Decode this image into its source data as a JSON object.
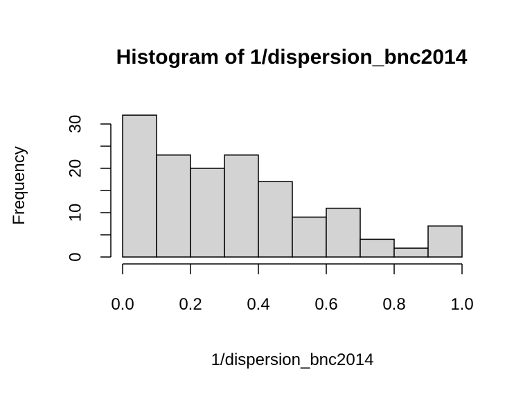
{
  "chart_data": {
    "type": "bar",
    "subtype": "histogram",
    "title": "Histogram of 1/dispersion_bnc2014",
    "xlabel": "1/dispersion_bnc2014",
    "ylabel": "Frequency",
    "bins": [
      {
        "start": 0.0,
        "end": 0.1,
        "count": 32
      },
      {
        "start": 0.1,
        "end": 0.2,
        "count": 23
      },
      {
        "start": 0.2,
        "end": 0.3,
        "count": 20
      },
      {
        "start": 0.3,
        "end": 0.4,
        "count": 23
      },
      {
        "start": 0.4,
        "end": 0.5,
        "count": 17
      },
      {
        "start": 0.5,
        "end": 0.6,
        "count": 9
      },
      {
        "start": 0.6,
        "end": 0.7,
        "count": 11
      },
      {
        "start": 0.7,
        "end": 0.8,
        "count": 4
      },
      {
        "start": 0.8,
        "end": 0.9,
        "count": 2
      },
      {
        "start": 0.9,
        "end": 1.0,
        "count": 7
      }
    ],
    "xlim": [
      0.0,
      1.0
    ],
    "ylim": [
      0,
      32
    ],
    "x_ticks": [
      "0.0",
      "0.2",
      "0.4",
      "0.6",
      "0.8",
      "1.0"
    ],
    "y_ticks": [
      "0",
      "10",
      "20",
      "30"
    ],
    "y_minor_ticks": [
      5,
      15,
      25
    ],
    "bar_fill": "#d3d3d3",
    "bar_stroke": "#000000",
    "grid": false,
    "legend": "none"
  }
}
